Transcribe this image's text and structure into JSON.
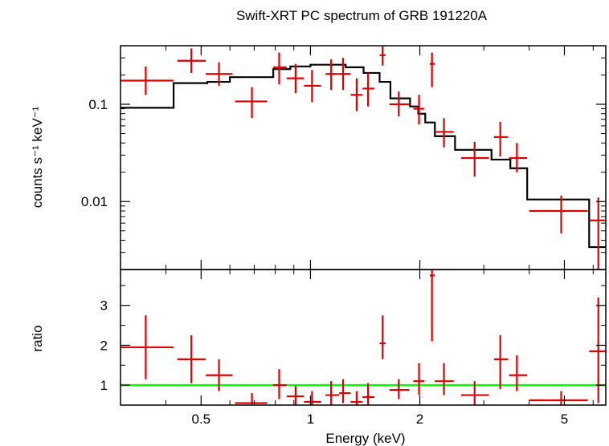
{
  "chart_data": [
    {
      "type": "scatter",
      "title": "Swift-XRT PC spectrum of GRB 191220A",
      "ylabel": "counts s⁻¹ keV⁻¹",
      "xlabel": "",
      "xscale": "log",
      "yscale": "log",
      "xlim": [
        0.3,
        6.5
      ],
      "ylim": [
        0.002,
        0.4
      ],
      "xticks": [],
      "yticks": [
        {
          "value": 0.01,
          "label": "0.01"
        },
        {
          "value": 0.1,
          "label": "0.1"
        }
      ],
      "colors": {
        "data": "#e00000",
        "model": "#000000"
      },
      "data_points": [
        {
          "x": 0.352,
          "xlo": 0.3,
          "xhi": 0.42,
          "y": 0.175,
          "ylo": 0.125,
          "yhi": 0.245
        },
        {
          "x": 0.47,
          "xlo": 0.43,
          "xhi": 0.515,
          "y": 0.28,
          "ylo": 0.21,
          "yhi": 0.375
        },
        {
          "x": 0.56,
          "xlo": 0.515,
          "xhi": 0.61,
          "y": 0.205,
          "ylo": 0.155,
          "yhi": 0.27
        },
        {
          "x": 0.69,
          "xlo": 0.62,
          "xhi": 0.76,
          "y": 0.107,
          "ylo": 0.072,
          "yhi": 0.15
        },
        {
          "x": 0.82,
          "xlo": 0.79,
          "xhi": 0.86,
          "y": 0.24,
          "ylo": 0.16,
          "yhi": 0.34
        },
        {
          "x": 0.91,
          "xlo": 0.86,
          "xhi": 0.96,
          "y": 0.185,
          "ylo": 0.13,
          "yhi": 0.26
        },
        {
          "x": 1.01,
          "xlo": 0.96,
          "xhi": 1.07,
          "y": 0.155,
          "ylo": 0.105,
          "yhi": 0.225
        },
        {
          "x": 1.14,
          "xlo": 1.1,
          "xhi": 1.2,
          "y": 0.205,
          "ylo": 0.14,
          "yhi": 0.29
        },
        {
          "x": 1.23,
          "xlo": 1.2,
          "xhi": 1.29,
          "y": 0.205,
          "ylo": 0.14,
          "yhi": 0.3
        },
        {
          "x": 1.34,
          "xlo": 1.29,
          "xhi": 1.39,
          "y": 0.125,
          "ylo": 0.085,
          "yhi": 0.185
        },
        {
          "x": 1.44,
          "xlo": 1.39,
          "xhi": 1.5,
          "y": 0.145,
          "ylo": 0.095,
          "yhi": 0.21
        },
        {
          "x": 1.58,
          "xlo": 1.55,
          "xhi": 1.61,
          "y": 0.32,
          "ylo": 0.25,
          "yhi": 0.4
        },
        {
          "x": 1.75,
          "xlo": 1.65,
          "xhi": 1.87,
          "y": 0.1,
          "ylo": 0.075,
          "yhi": 0.135
        },
        {
          "x": 1.99,
          "xlo": 1.92,
          "xhi": 2.06,
          "y": 0.09,
          "ylo": 0.062,
          "yhi": 0.125
        },
        {
          "x": 2.16,
          "xlo": 2.13,
          "xhi": 2.2,
          "y": 0.26,
          "ylo": 0.15,
          "yhi": 0.34
        },
        {
          "x": 2.33,
          "xlo": 2.2,
          "xhi": 2.48,
          "y": 0.052,
          "ylo": 0.036,
          "yhi": 0.072
        },
        {
          "x": 2.83,
          "xlo": 2.6,
          "xhi": 3.1,
          "y": 0.028,
          "ylo": 0.018,
          "yhi": 0.041
        },
        {
          "x": 3.33,
          "xlo": 3.2,
          "xhi": 3.5,
          "y": 0.046,
          "ylo": 0.029,
          "yhi": 0.066
        },
        {
          "x": 3.7,
          "xlo": 3.52,
          "xhi": 3.95,
          "y": 0.028,
          "ylo": 0.02,
          "yhi": 0.04
        },
        {
          "x": 4.9,
          "xlo": 4.0,
          "xhi": 5.8,
          "y": 0.008,
          "ylo": 0.0047,
          "yhi": 0.0115
        },
        {
          "x": 6.2,
          "xlo": 5.85,
          "xhi": 6.5,
          "y": 0.0064,
          "ylo": 0.002,
          "yhi": 0.011
        }
      ],
      "model_steps": [
        {
          "xlo": 0.3,
          "xhi": 0.42,
          "y": 0.092
        },
        {
          "xlo": 0.42,
          "xhi": 0.52,
          "y": 0.165
        },
        {
          "xlo": 0.52,
          "xhi": 0.6,
          "y": 0.17
        },
        {
          "xlo": 0.6,
          "xhi": 0.79,
          "y": 0.19
        },
        {
          "xlo": 0.79,
          "xhi": 0.88,
          "y": 0.23
        },
        {
          "xlo": 0.88,
          "xhi": 1.0,
          "y": 0.245
        },
        {
          "xlo": 1.0,
          "xhi": 1.25,
          "y": 0.255
        },
        {
          "xlo": 1.25,
          "xhi": 1.4,
          "y": 0.24
        },
        {
          "xlo": 1.4,
          "xhi": 1.55,
          "y": 0.21
        },
        {
          "xlo": 1.55,
          "xhi": 1.66,
          "y": 0.17
        },
        {
          "xlo": 1.66,
          "xhi": 1.88,
          "y": 0.115
        },
        {
          "xlo": 1.88,
          "xhi": 1.98,
          "y": 0.095
        },
        {
          "xlo": 1.98,
          "xhi": 2.07,
          "y": 0.08
        },
        {
          "xlo": 2.07,
          "xhi": 2.2,
          "y": 0.065
        },
        {
          "xlo": 2.2,
          "xhi": 2.5,
          "y": 0.047
        },
        {
          "xlo": 2.5,
          "xhi": 3.15,
          "y": 0.034
        },
        {
          "xlo": 3.15,
          "xhi": 3.55,
          "y": 0.027
        },
        {
          "xlo": 3.55,
          "xhi": 3.95,
          "y": 0.022
        },
        {
          "xlo": 3.95,
          "xhi": 5.85,
          "y": 0.0105
        },
        {
          "xlo": 5.85,
          "xhi": 6.5,
          "y": 0.0034
        }
      ]
    },
    {
      "type": "scatter",
      "title": "",
      "xlabel": "Energy (keV)",
      "ylabel": "ratio",
      "xscale": "log",
      "yscale": "linear",
      "xlim": [
        0.3,
        6.5
      ],
      "ylim": [
        0.5,
        3.9
      ],
      "xticks": [
        {
          "value": 0.5,
          "label": "0.5"
        },
        {
          "value": 1,
          "label": "1"
        },
        {
          "value": 2,
          "label": "2"
        },
        {
          "value": 5,
          "label": "5"
        }
      ],
      "yticks": [
        {
          "value": 1,
          "label": "1"
        },
        {
          "value": 2,
          "label": "2"
        },
        {
          "value": 3,
          "label": "3"
        }
      ],
      "reference_line": {
        "y": 1,
        "color": "#00ff00"
      },
      "colors": {
        "data": "#e00000"
      },
      "data_points": [
        {
          "x": 0.352,
          "xlo": 0.3,
          "xhi": 0.42,
          "y": 1.95,
          "ylo": 1.15,
          "yhi": 2.75
        },
        {
          "x": 0.47,
          "xlo": 0.43,
          "xhi": 0.515,
          "y": 1.65,
          "ylo": 1.05,
          "yhi": 2.25
        },
        {
          "x": 0.56,
          "xlo": 0.515,
          "xhi": 0.61,
          "y": 1.25,
          "ylo": 0.85,
          "yhi": 1.65
        },
        {
          "x": 0.69,
          "xlo": 0.62,
          "xhi": 0.76,
          "y": 0.55,
          "ylo": 0.5,
          "yhi": 0.8
        },
        {
          "x": 0.82,
          "xlo": 0.79,
          "xhi": 0.86,
          "y": 1.0,
          "ylo": 0.65,
          "yhi": 1.4
        },
        {
          "x": 0.91,
          "xlo": 0.86,
          "xhi": 0.96,
          "y": 0.72,
          "ylo": 0.5,
          "yhi": 0.98
        },
        {
          "x": 1.01,
          "xlo": 0.96,
          "xhi": 1.07,
          "y": 0.58,
          "ylo": 0.5,
          "yhi": 0.85
        },
        {
          "x": 1.14,
          "xlo": 1.1,
          "xhi": 1.2,
          "y": 0.75,
          "ylo": 0.5,
          "yhi": 1.1
        },
        {
          "x": 1.23,
          "xlo": 1.2,
          "xhi": 1.29,
          "y": 0.8,
          "ylo": 0.55,
          "yhi": 1.15
        },
        {
          "x": 1.34,
          "xlo": 1.29,
          "xhi": 1.39,
          "y": 0.58,
          "ylo": 0.5,
          "yhi": 0.85
        },
        {
          "x": 1.44,
          "xlo": 1.39,
          "xhi": 1.5,
          "y": 0.7,
          "ylo": 0.5,
          "yhi": 1.05
        },
        {
          "x": 1.58,
          "xlo": 1.55,
          "xhi": 1.61,
          "y": 2.05,
          "ylo": 1.65,
          "yhi": 2.75
        },
        {
          "x": 1.75,
          "xlo": 1.65,
          "xhi": 1.87,
          "y": 0.88,
          "ylo": 0.65,
          "yhi": 1.15
        },
        {
          "x": 1.99,
          "xlo": 1.92,
          "xhi": 2.06,
          "y": 1.1,
          "ylo": 0.75,
          "yhi": 1.55
        },
        {
          "x": 2.16,
          "xlo": 2.13,
          "xhi": 2.2,
          "y": 3.75,
          "ylo": 2.1,
          "yhi": 3.9
        },
        {
          "x": 2.33,
          "xlo": 2.2,
          "xhi": 2.48,
          "y": 1.1,
          "ylo": 0.75,
          "yhi": 1.55
        },
        {
          "x": 2.83,
          "xlo": 2.6,
          "xhi": 3.1,
          "y": 0.75,
          "ylo": 0.5,
          "yhi": 1.1
        },
        {
          "x": 3.33,
          "xlo": 3.2,
          "xhi": 3.5,
          "y": 1.65,
          "ylo": 0.9,
          "yhi": 2.25
        },
        {
          "x": 3.7,
          "xlo": 3.52,
          "xhi": 3.95,
          "y": 1.25,
          "ylo": 0.85,
          "yhi": 1.75
        },
        {
          "x": 4.9,
          "xlo": 4.0,
          "xhi": 5.8,
          "y": 0.62,
          "ylo": 0.5,
          "yhi": 0.85
        },
        {
          "x": 6.2,
          "xlo": 5.85,
          "xhi": 6.5,
          "y": 1.85,
          "ylo": 0.55,
          "yhi": 3.2
        }
      ]
    }
  ]
}
